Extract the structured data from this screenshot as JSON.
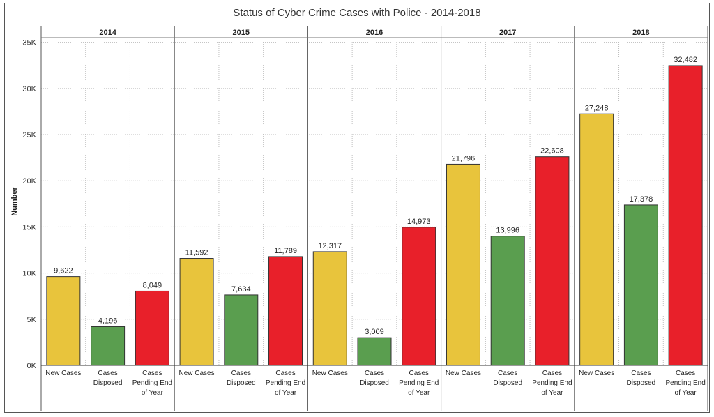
{
  "chart_data": {
    "type": "bar",
    "title": "Status of Cyber Crime Cases with Police - 2014-2018",
    "ylabel": "Number",
    "xlabel": "",
    "ylim": [
      0,
      35500
    ],
    "yticks": [
      0,
      5000,
      10000,
      15000,
      20000,
      25000,
      30000,
      35000
    ],
    "ytick_labels": [
      "0K",
      "5K",
      "10K",
      "15K",
      "20K",
      "25K",
      "30K",
      "35K"
    ],
    "grid": true,
    "categories": [
      "New Cases",
      "Cases Disposed",
      "Cases Pending End of Year"
    ],
    "category_label_lines": [
      [
        "New Cases"
      ],
      [
        "Cases",
        "Disposed"
      ],
      [
        "Cases",
        "Pending End",
        "of Year"
      ]
    ],
    "colors": [
      "#e8c43c",
      "#5a9e4f",
      "#e8202a"
    ],
    "groups": [
      {
        "year": "2014",
        "values": [
          9622,
          4196,
          8049
        ],
        "labels": [
          "9,622",
          "4,196",
          "8,049"
        ]
      },
      {
        "year": "2015",
        "values": [
          11592,
          7634,
          11789
        ],
        "labels": [
          "11,592",
          "7,634",
          "11,789"
        ]
      },
      {
        "year": "2016",
        "values": [
          12317,
          3009,
          14973
        ],
        "labels": [
          "12,317",
          "3,009",
          "14,973"
        ]
      },
      {
        "year": "2017",
        "values": [
          21796,
          13996,
          22608
        ],
        "labels": [
          "21,796",
          "13,996",
          "22,608"
        ]
      },
      {
        "year": "2018",
        "values": [
          27248,
          17378,
          32482
        ],
        "labels": [
          "27,248",
          "17,378",
          "32,482"
        ]
      }
    ]
  }
}
